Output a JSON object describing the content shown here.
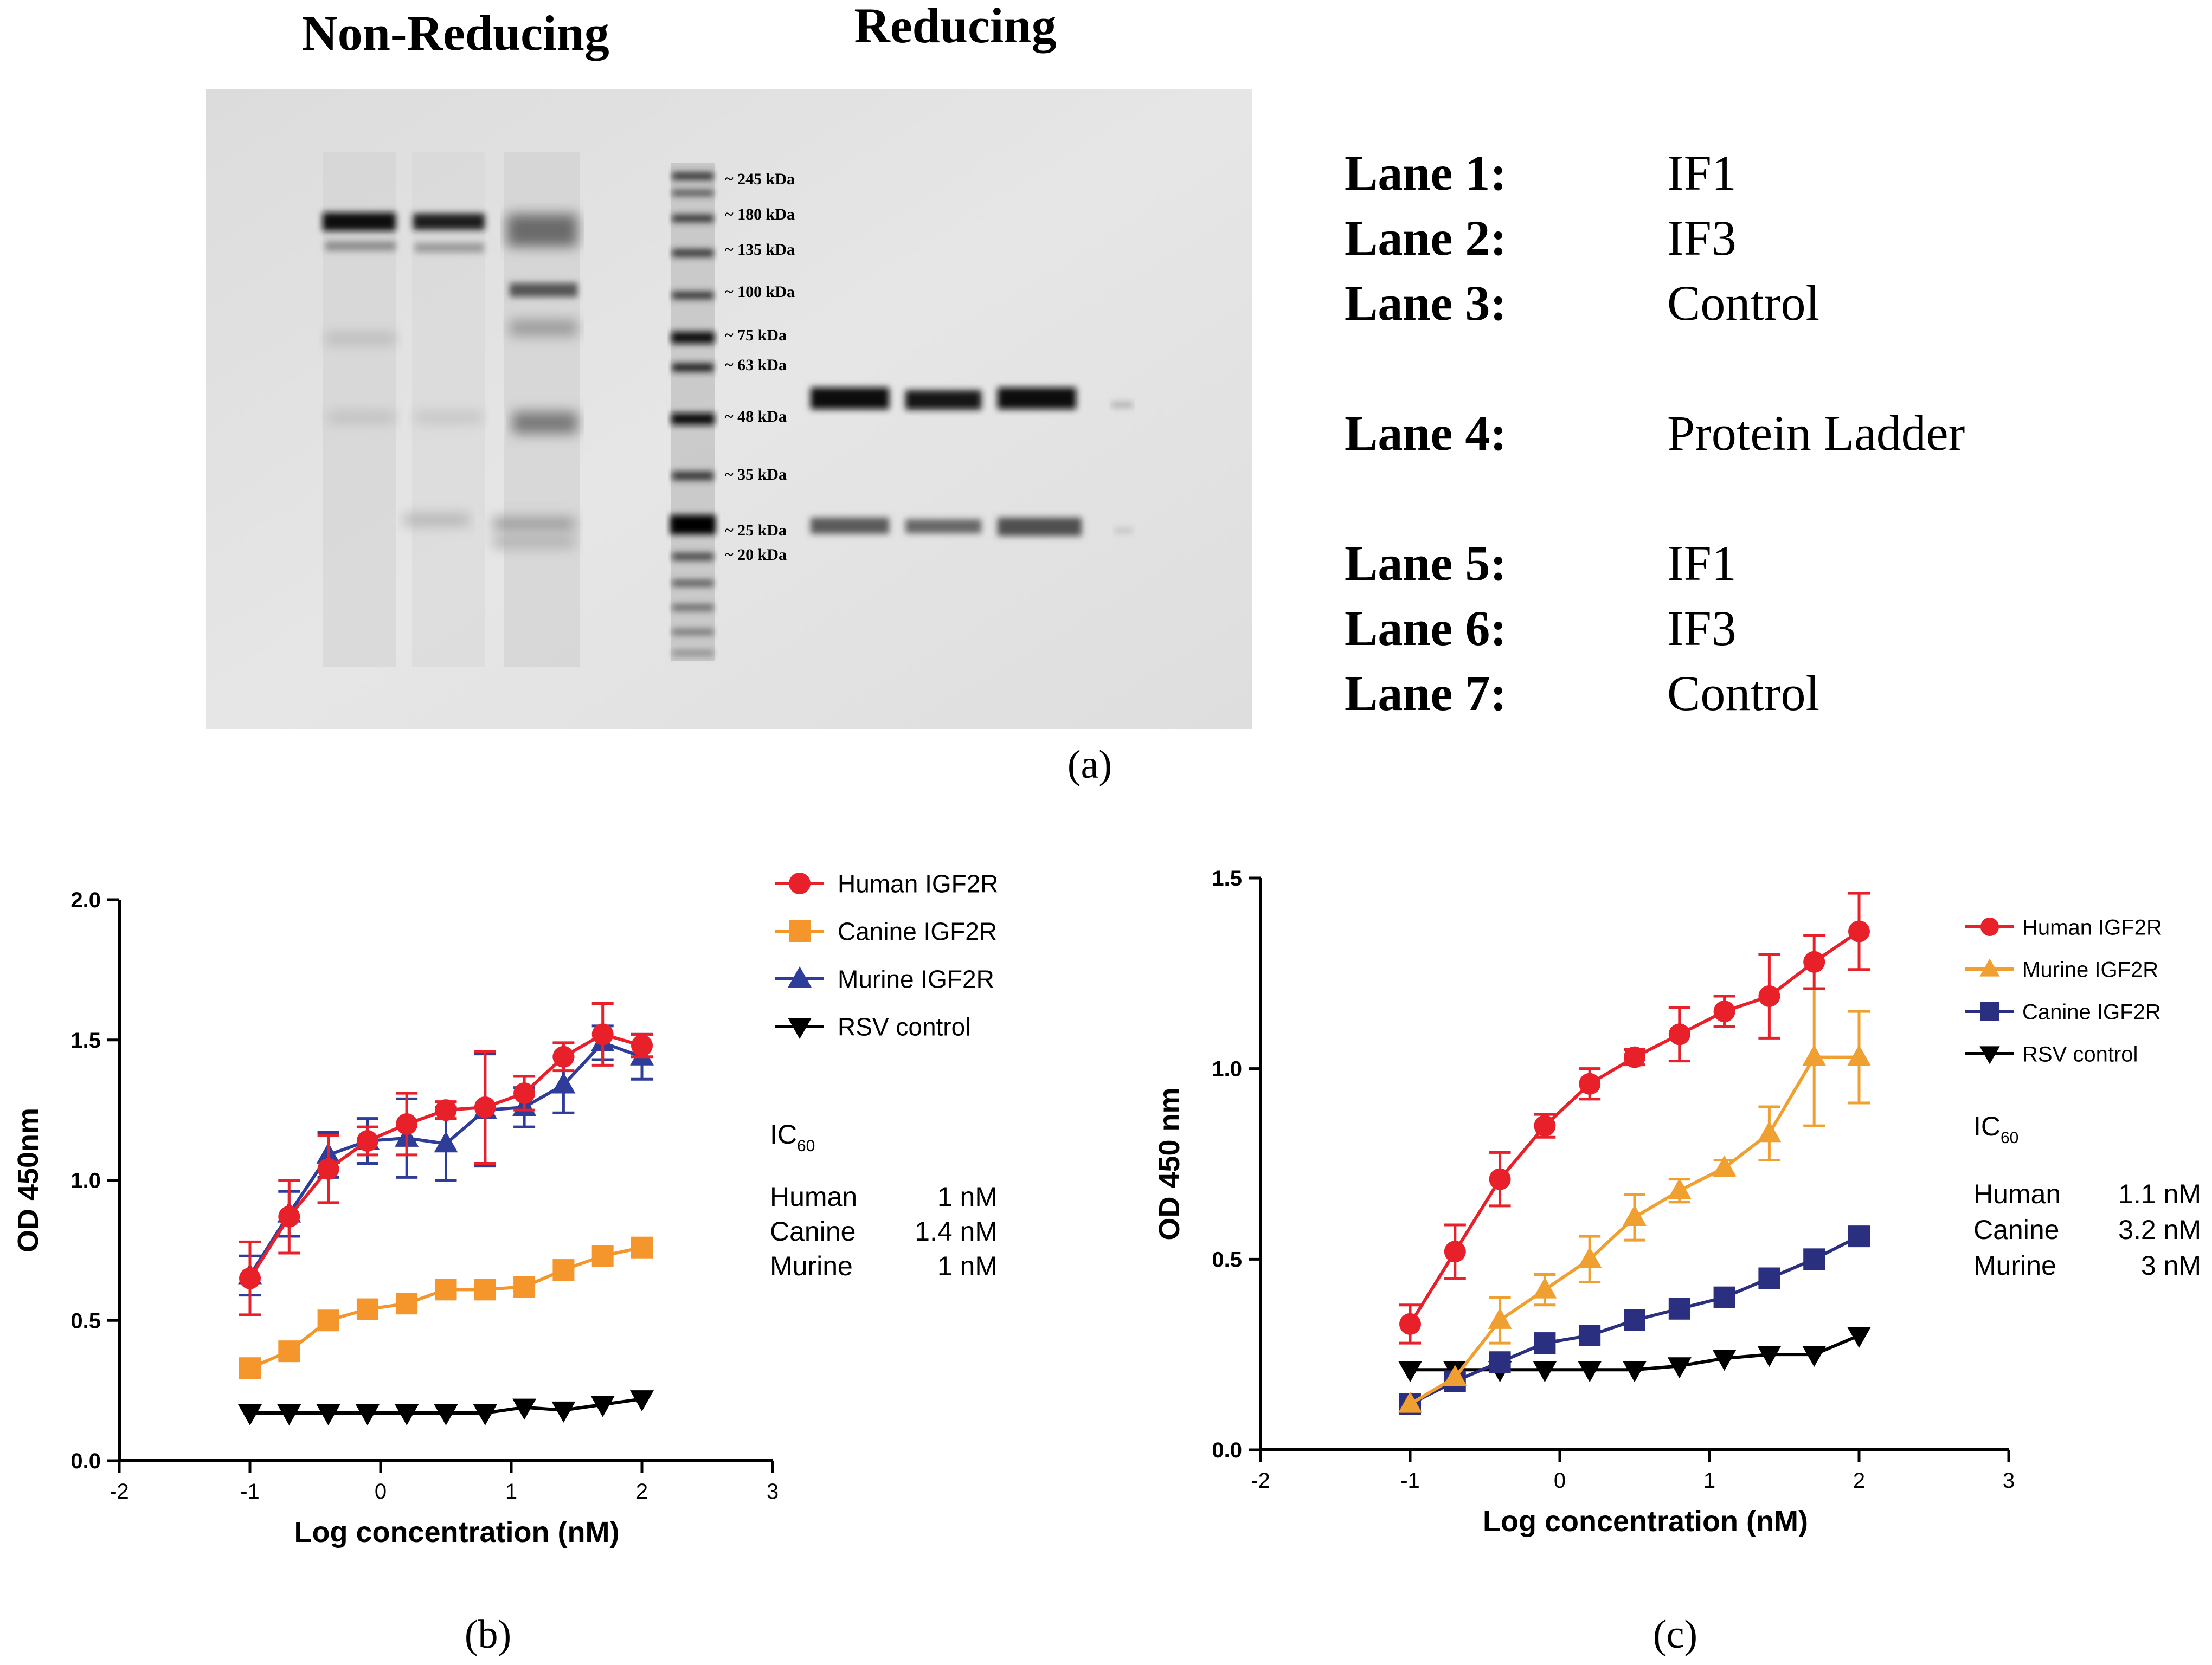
{
  "figure": {
    "panel_labels": [
      "(a)",
      "(b)",
      "(c)"
    ],
    "colors": {
      "human": "#e8202a",
      "canine": "#f5962c",
      "murine": "#2e3d9a",
      "murine_c": "#f0a030",
      "canine_c": "#2b2f80",
      "rsv": "#000000"
    }
  },
  "gel": {
    "header_left": "Non-Reducing",
    "header_right": "Reducing",
    "markers": [
      "~ 245 kDa",
      "~ 180 kDa",
      "~ 135 kDa",
      "~ 100 kDa",
      "~ 75 kDa",
      "~ 63 kDa",
      "~ 48 kDa",
      "~ 35 kDa",
      "~ 25 kDa",
      "~ 20 kDa"
    ],
    "lanes": [
      {
        "label": "Lane 1:",
        "content": "IF1"
      },
      {
        "label": "Lane 2:",
        "content": "IF3"
      },
      {
        "label": "Lane 3:",
        "content": "Control"
      },
      {
        "label": "Lane 4:",
        "content": "Protein Ladder"
      },
      {
        "label": "Lane 5:",
        "content": "IF1"
      },
      {
        "label": "Lane 6:",
        "content": "IF3"
      },
      {
        "label": "Lane 7:",
        "content": "Control"
      }
    ]
  },
  "ic_b": {
    "title": "IC",
    "sub": "60",
    "rows": [
      {
        "name": "Human",
        "value": "1 nM"
      },
      {
        "name": "Canine",
        "value": "1.4 nM"
      },
      {
        "name": "Murine",
        "value": "1 nM"
      }
    ]
  },
  "ic_c": {
    "title": "IC",
    "sub": "60",
    "rows": [
      {
        "name": "Human",
        "value": "1.1 nM"
      },
      {
        "name": "Canine",
        "value": "3.2 nM"
      },
      {
        "name": "Murine",
        "value": "3  nM"
      }
    ]
  },
  "chart_data": [
    {
      "type": "line",
      "panel": "(b)",
      "xlabel": "Log concentration (nM)",
      "ylabel": "OD 450nm",
      "xlim": [
        -2,
        3
      ],
      "ylim": [
        0,
        2.0
      ],
      "xticks": [
        "-2",
        "-1",
        "0",
        "1",
        "2",
        "3"
      ],
      "yticks": [
        "0.0",
        "0.5",
        "1.0",
        "1.5",
        "2.0"
      ],
      "legend_position": "right",
      "x": [
        -1,
        -0.7,
        -0.4,
        -0.1,
        0.2,
        0.5,
        0.8,
        1.1,
        1.4,
        1.7,
        2.0
      ],
      "series": [
        {
          "name": "Human IGF2R",
          "marker": "circle",
          "color_key": "human",
          "values": [
            0.65,
            0.87,
            1.04,
            1.14,
            1.2,
            1.25,
            1.26,
            1.31,
            1.44,
            1.52,
            1.48
          ],
          "errors": [
            0.13,
            0.13,
            0.12,
            0.05,
            0.11,
            0.03,
            0.2,
            0.06,
            0.05,
            0.11,
            0.04
          ]
        },
        {
          "name": "Canine IGF2R",
          "marker": "square",
          "color_key": "canine",
          "values": [
            0.33,
            0.39,
            0.5,
            0.54,
            0.56,
            0.61,
            0.61,
            0.62,
            0.68,
            0.73,
            0.76
          ],
          "errors": [
            0,
            0,
            0,
            0,
            0,
            0,
            0,
            0,
            0,
            0,
            0
          ]
        },
        {
          "name": "Murine IGF2R",
          "marker": "triangle",
          "color_key": "murine",
          "values": [
            0.66,
            0.88,
            1.09,
            1.14,
            1.15,
            1.13,
            1.25,
            1.26,
            1.34,
            1.49,
            1.44
          ],
          "errors": [
            0.07,
            0.08,
            0.08,
            0.08,
            0.14,
            0.13,
            0.2,
            0.07,
            0.1,
            0.06,
            0.08
          ]
        },
        {
          "name": "RSV control",
          "marker": "triangle-down",
          "color_key": "rsv",
          "values": [
            0.17,
            0.17,
            0.17,
            0.17,
            0.17,
            0.17,
            0.17,
            0.19,
            0.18,
            0.2,
            0.22
          ],
          "errors": [
            0,
            0,
            0,
            0,
            0,
            0,
            0,
            0,
            0,
            0,
            0
          ]
        }
      ]
    },
    {
      "type": "line",
      "panel": "(c)",
      "xlabel": "Log concentration (nM)",
      "ylabel": "OD 450 nm",
      "xlim": [
        -2,
        3
      ],
      "ylim": [
        0,
        1.5
      ],
      "xticks": [
        "-2",
        "-1",
        "0",
        "1",
        "2",
        "3"
      ],
      "yticks": [
        "0.0",
        "0.5",
        "1.0",
        "1.5"
      ],
      "legend_position": "right",
      "x": [
        -1,
        -0.7,
        -0.4,
        -0.1,
        0.2,
        0.5,
        0.8,
        1.1,
        1.4,
        1.7,
        2.0
      ],
      "series": [
        {
          "name": "Human IGF2R",
          "marker": "circle",
          "color_key": "human",
          "values": [
            0.33,
            0.52,
            0.71,
            0.85,
            0.96,
            1.03,
            1.09,
            1.15,
            1.19,
            1.28,
            1.36
          ],
          "errors": [
            0.05,
            0.07,
            0.07,
            0.03,
            0.04,
            0.02,
            0.07,
            0.04,
            0.11,
            0.07,
            0.1
          ]
        },
        {
          "name": "Murine IGF2R",
          "marker": "triangle",
          "color_key": "murine_c",
          "values": [
            0.12,
            0.19,
            0.34,
            0.42,
            0.5,
            0.61,
            0.68,
            0.74,
            0.83,
            1.03,
            1.03
          ],
          "errors": [
            0,
            0,
            0.06,
            0.04,
            0.06,
            0.06,
            0.03,
            0.02,
            0.07,
            0.18,
            0.12
          ]
        },
        {
          "name": "Canine IGF2R",
          "marker": "square",
          "color_key": "canine_c",
          "values": [
            0.12,
            0.18,
            0.23,
            0.28,
            0.3,
            0.34,
            0.37,
            0.4,
            0.45,
            0.5,
            0.56
          ],
          "errors": [
            0,
            0,
            0,
            0,
            0,
            0,
            0,
            0,
            0,
            0,
            0
          ]
        },
        {
          "name": "RSV control",
          "marker": "triangle-down",
          "color_key": "rsv",
          "values": [
            0.21,
            0.21,
            0.21,
            0.21,
            0.21,
            0.21,
            0.22,
            0.24,
            0.25,
            0.25,
            0.3
          ],
          "errors": [
            0,
            0,
            0,
            0,
            0,
            0,
            0,
            0,
            0,
            0,
            0
          ]
        }
      ]
    }
  ]
}
